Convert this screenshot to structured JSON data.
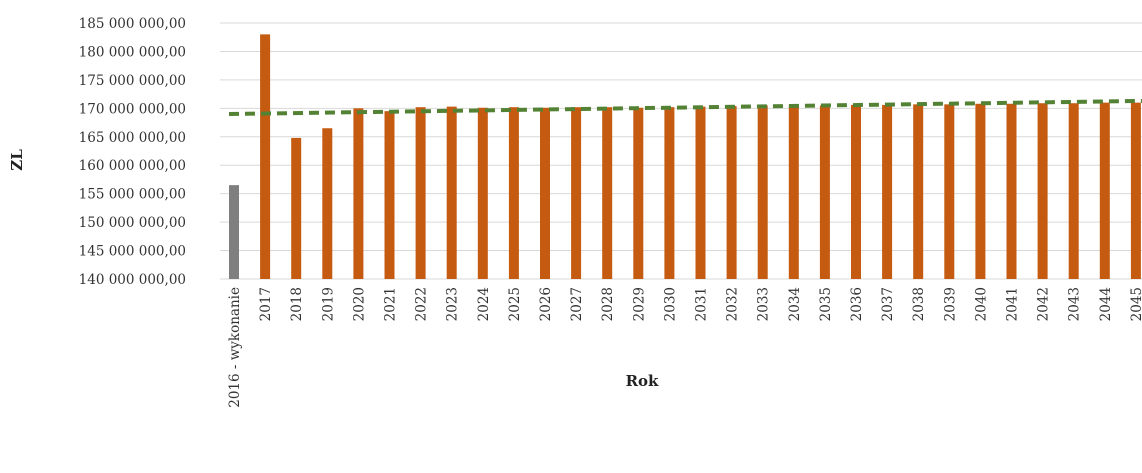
{
  "chart_data": {
    "type": "bar",
    "title": "",
    "xlabel": "Rok",
    "ylabel": "ZL",
    "ylim": [
      140000000,
      185000000
    ],
    "ytick_values": [
      140000000,
      145000000,
      150000000,
      155000000,
      160000000,
      165000000,
      170000000,
      175000000,
      180000000,
      185000000
    ],
    "ytick_labels": [
      "140 000 000,00",
      "145 000 000,00",
      "150 000 000,00",
      "155 000 000,00",
      "160 000 000,00",
      "165 000 000,00",
      "170 000 000,00",
      "175 000 000,00",
      "180 000 000,00",
      "185 000 000,00"
    ],
    "grid": true,
    "categories": [
      "2016 - wykonanie",
      "2017",
      "2018",
      "2019",
      "2020",
      "2021",
      "2022",
      "2023",
      "2024",
      "2025",
      "2026",
      "2027",
      "2028",
      "2029",
      "2030",
      "2031",
      "2032",
      "2033",
      "2034",
      "2035",
      "2036",
      "2037",
      "2038",
      "2039",
      "2040",
      "2041",
      "2042",
      "2043",
      "2044",
      "2045"
    ],
    "series": [
      {
        "type": "bar",
        "color": "#c55a11",
        "highlight": {
          "index": 0,
          "color": "#7f7f7f"
        },
        "values": [
          156500000,
          183000000,
          164800000,
          166500000,
          170000000,
          169500000,
          170200000,
          170300000,
          170100000,
          170200000,
          170100000,
          170200000,
          170200000,
          170100000,
          170200000,
          170300000,
          170400000,
          170500000,
          170500000,
          170500000,
          170600000,
          170600000,
          170700000,
          170700000,
          170800000,
          170800000,
          170900000,
          170900000,
          171000000,
          171000000
        ]
      },
      {
        "type": "trendline",
        "style": "dashed",
        "color": "#548235",
        "start": 169000000,
        "end": 171300000
      }
    ]
  }
}
